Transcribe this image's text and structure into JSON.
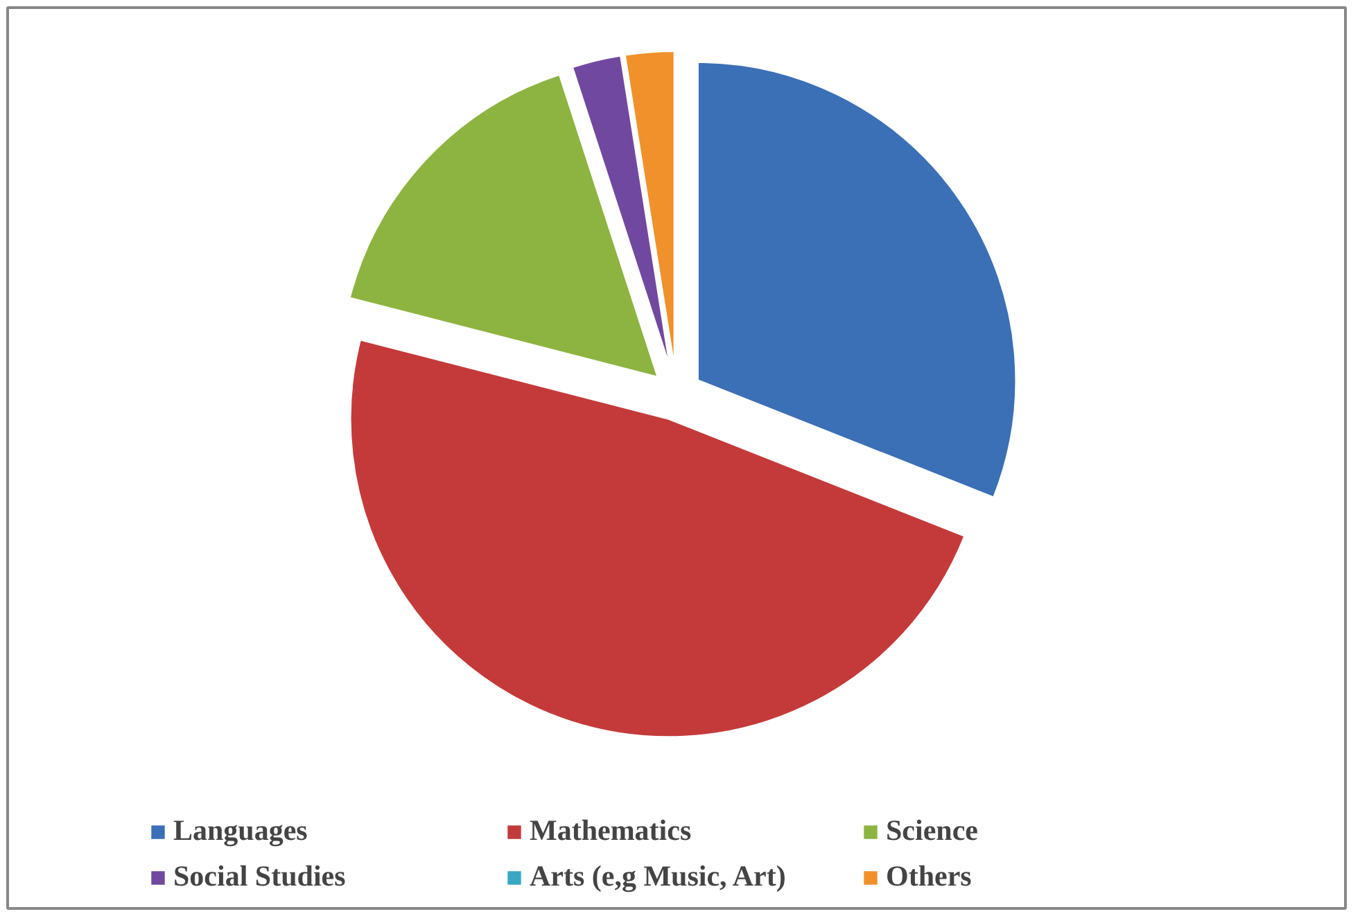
{
  "chart_data": {
    "type": "pie",
    "categories": [
      "Languages",
      "Mathematics",
      "Science",
      "Social Studies",
      "Arts (e,g Music, Art)",
      "Others"
    ],
    "values": [
      31,
      48,
      16,
      2.5,
      0,
      2.5
    ],
    "colors": [
      "#3b6fb6",
      "#c43a3a",
      "#8db440",
      "#7148a0",
      "#38a8c6",
      "#f0912c"
    ],
    "legend": "bottom"
  }
}
